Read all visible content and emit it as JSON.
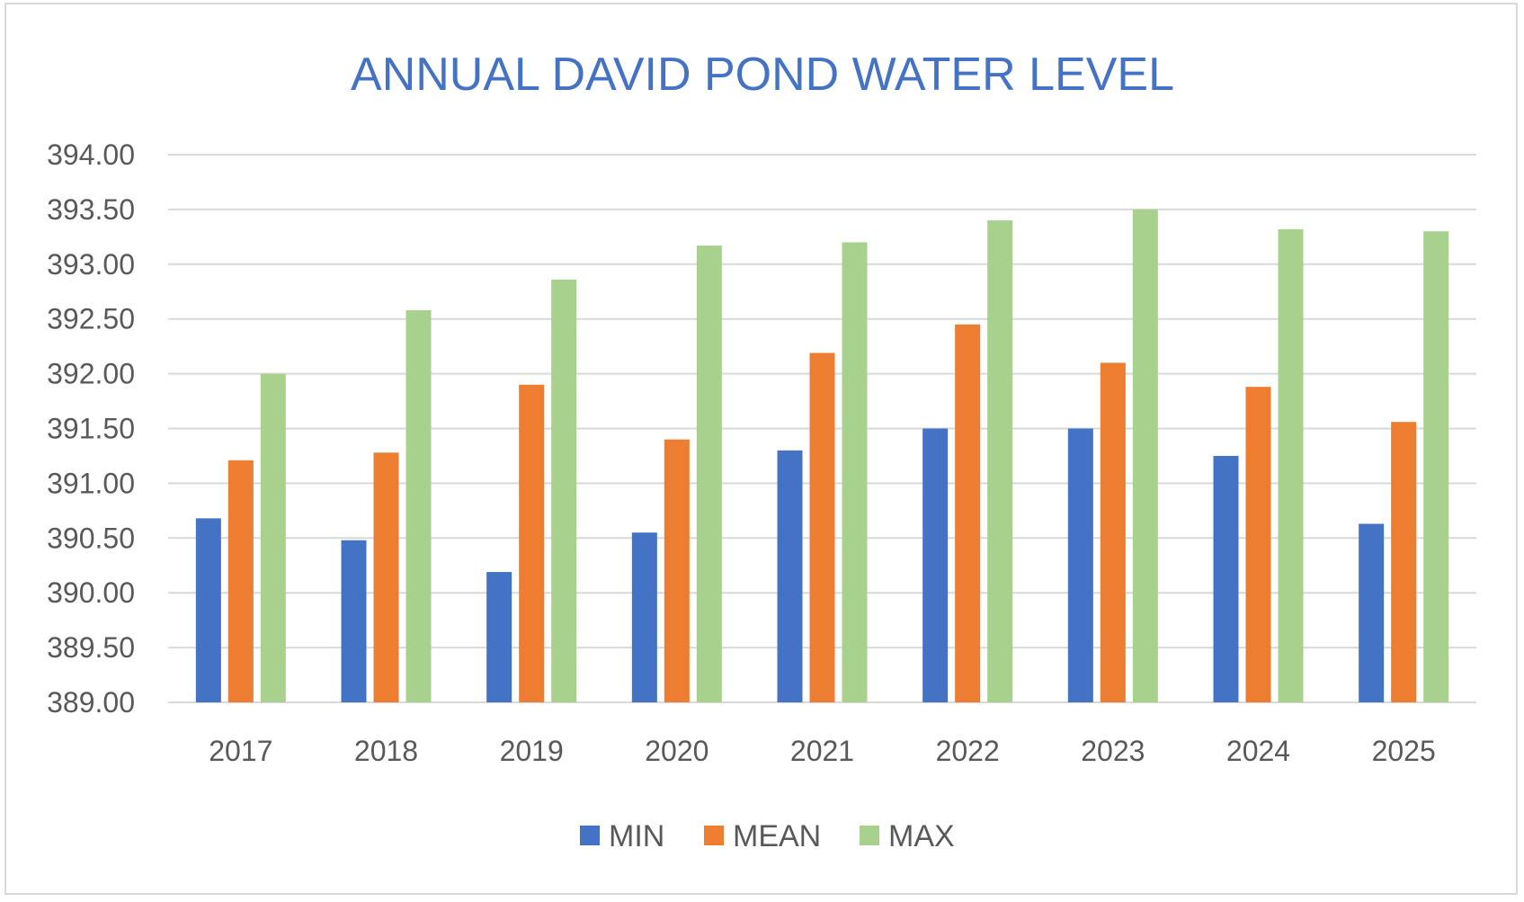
{
  "chart_data": {
    "type": "bar",
    "title": "ANNUAL DAVID POND WATER LEVEL",
    "xlabel": "",
    "ylabel": "",
    "categories": [
      "2017",
      "2018",
      "2019",
      "2020",
      "2021",
      "2022",
      "2023",
      "2024",
      "2025"
    ],
    "ylim": [
      389.0,
      394.0
    ],
    "ytick_step": 0.5,
    "ytick_labels": [
      "389.00",
      "389.50",
      "390.00",
      "390.50",
      "391.00",
      "391.50",
      "392.00",
      "392.50",
      "393.00",
      "393.50",
      "394.00"
    ],
    "grid": true,
    "legend_position": "bottom",
    "series": [
      {
        "name": "MIN",
        "color": "#4472c4",
        "values": [
          390.68,
          390.48,
          390.19,
          390.55,
          391.3,
          391.5,
          391.5,
          391.25,
          390.63
        ]
      },
      {
        "name": "MEAN",
        "color": "#ed7d31",
        "values": [
          391.21,
          391.28,
          391.9,
          391.4,
          392.19,
          392.45,
          392.1,
          391.88,
          391.56
        ]
      },
      {
        "name": "MAX",
        "color": "#a9d18e",
        "values": [
          392.0,
          392.58,
          392.86,
          393.17,
          393.2,
          393.4,
          393.5,
          393.32,
          393.3
        ]
      }
    ]
  }
}
